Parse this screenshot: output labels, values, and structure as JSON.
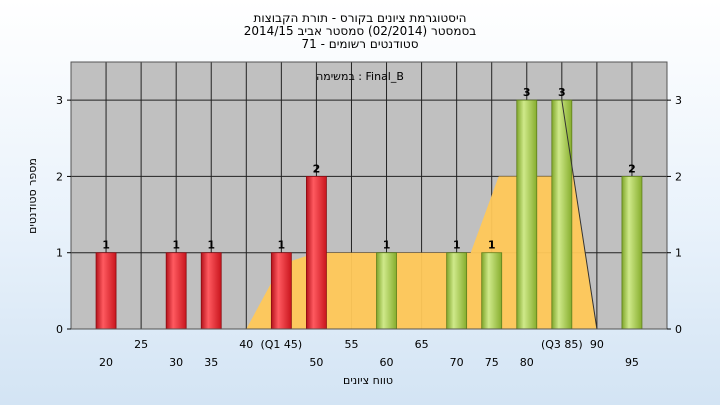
{
  "chart_data": {
    "type": "bar",
    "title_lines": [
      "היסטוגרמת ציונים בקורס - תורת הקבוצות",
      "בסמסטר  (02/2014)  סמסטר אביב 2014/15",
      "סטודנטים רשומים - 71"
    ],
    "annotation": "במשימה : Final_B",
    "ylabel": "מספר סטודנטים",
    "xlabel": "טווח ציונים",
    "xlim": [
      15,
      100
    ],
    "ylim": [
      0,
      3.5
    ],
    "yticks": [
      0,
      1,
      2,
      3
    ],
    "grid": true,
    "xtick_lower": [
      {
        "x": 20,
        "label": "20"
      },
      {
        "x": 30,
        "label": "30"
      },
      {
        "x": 35,
        "label": "35"
      },
      {
        "x": 50,
        "label": "50"
      },
      {
        "x": 60,
        "label": "60"
      },
      {
        "x": 70,
        "label": "70"
      },
      {
        "x": 75,
        "label": "75"
      },
      {
        "x": 80,
        "label": "80"
      },
      {
        "x": 95,
        "label": "95"
      }
    ],
    "xtick_upper": [
      {
        "x": 25,
        "label": "25"
      },
      {
        "x": 40,
        "label": "40"
      },
      {
        "x": 45,
        "label": "(Q1 45)"
      },
      {
        "x": 55,
        "label": "55"
      },
      {
        "x": 65,
        "label": "65"
      },
      {
        "x": 85,
        "label": "(Q3 85)"
      },
      {
        "x": 90,
        "label": "90"
      }
    ],
    "bars": [
      {
        "x": 20,
        "value": 1,
        "label": "1",
        "color": "red"
      },
      {
        "x": 30,
        "value": 1,
        "label": "1",
        "color": "red"
      },
      {
        "x": 35,
        "value": 1,
        "label": "1",
        "color": "red"
      },
      {
        "x": 45,
        "value": 1,
        "label": "1",
        "color": "red"
      },
      {
        "x": 50,
        "value": 2,
        "label": "2",
        "color": "red"
      },
      {
        "x": 60,
        "value": 1,
        "label": "1",
        "color": "green"
      },
      {
        "x": 70,
        "value": 1,
        "label": "1",
        "color": "green"
      },
      {
        "x": 75,
        "value": 1,
        "label": "1",
        "color": "green"
      },
      {
        "x": 80,
        "value": 3,
        "label": "3",
        "color": "green"
      },
      {
        "x": 85,
        "value": 3,
        "label": "3",
        "color": "green"
      },
      {
        "x": 95,
        "value": 2,
        "label": "2",
        "color": "green"
      }
    ],
    "area": [
      [
        15,
        0
      ],
      [
        40,
        0
      ],
      [
        45,
        0.85
      ],
      [
        50,
        1
      ],
      [
        72,
        1
      ],
      [
        76,
        2
      ],
      [
        84,
        2
      ],
      [
        85,
        3
      ],
      [
        90,
        0
      ]
    ],
    "colors": {
      "plot_bg": "#c0c0c0",
      "area": "#ffc858",
      "red_bar": "#e31c24",
      "green_bar": "#9ccb3c"
    }
  }
}
